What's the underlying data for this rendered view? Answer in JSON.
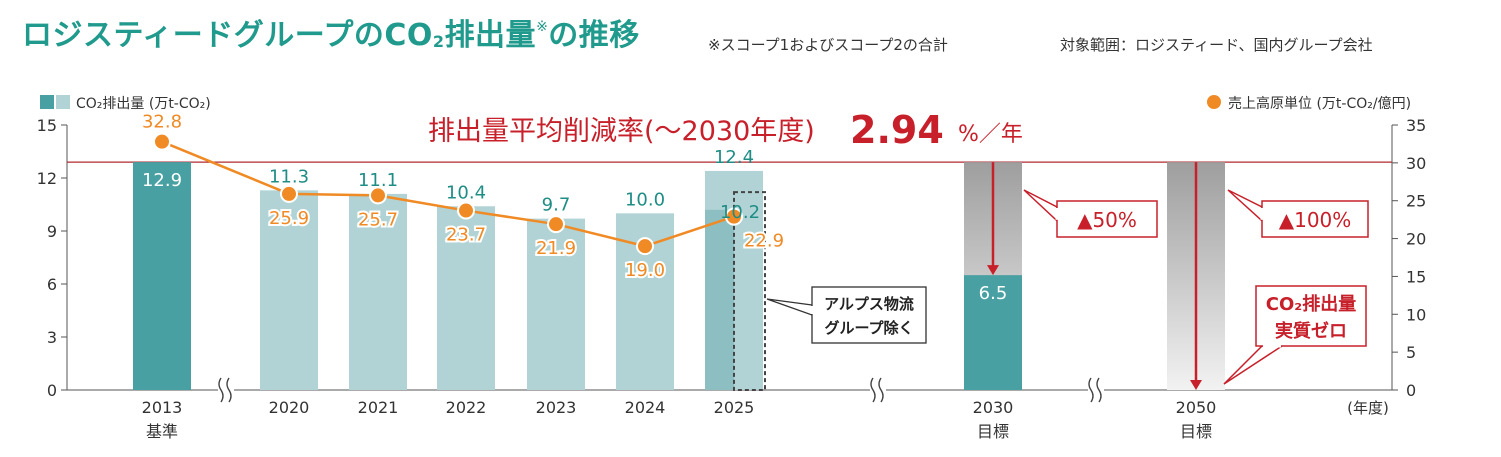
{
  "header": {
    "title_main": "ロジスティードグループのCO",
    "title_sub": "2",
    "title_after": "排出量",
    "title_mark": "※",
    "title_end": "の推移",
    "note_scope": "※スコープ1およびスコープ2の合計",
    "note_range": "対象範囲：ロジスティード、国内グループ会社"
  },
  "chart_data": {
    "type": "bar+line",
    "categories": [
      "2013",
      "2020",
      "2021",
      "2022",
      "2023",
      "2024",
      "2025",
      "2030",
      "2050"
    ],
    "category_sublabels": [
      "基準",
      "",
      "",
      "",
      "",
      "",
      "",
      "目標",
      "目標"
    ],
    "x_unit_label": "(年度)",
    "bar_series": {
      "name": "CO₂排出量 (万t-CO₂)",
      "values": [
        12.9,
        11.3,
        11.1,
        10.4,
        9.7,
        10.0,
        12.4,
        6.5,
        0
      ],
      "labels": [
        "12.9",
        "11.3",
        "11.1",
        "10.4",
        "9.7",
        "10.0",
        "12.4",
        "6.5",
        ""
      ],
      "colors": {
        "dark": "#48a0a2",
        "light": "#b1d3d5",
        "alps_overlay": "#8dbfc2"
      }
    },
    "alps_excluded": {
      "category": "2025",
      "value": 10.2,
      "label": "10.2",
      "callout": [
        "アルプス物流",
        "グループ除く"
      ]
    },
    "line_series": {
      "name": "売上高原単位 (万t-CO₂/億円)",
      "categories": [
        "2013",
        "2020",
        "2021",
        "2022",
        "2023",
        "2024",
        "2025"
      ],
      "values": [
        32.8,
        25.9,
        25.7,
        23.7,
        21.9,
        19.0,
        22.9
      ],
      "labels": [
        "32.8",
        "25.9",
        "25.7",
        "23.7",
        "21.9",
        "19.0",
        "22.9"
      ],
      "color": "#f08a24"
    },
    "y_left": {
      "range": [
        0,
        15
      ],
      "ticks": [
        "0",
        "3",
        "6",
        "9",
        "12",
        "15"
      ]
    },
    "y_right": {
      "range": [
        0,
        35
      ],
      "ticks": [
        "0",
        "5",
        "10",
        "15",
        "20",
        "25",
        "30",
        "35"
      ]
    },
    "reference_line": {
      "value": 12.9,
      "color": "#b0282e"
    },
    "reduction_headline": {
      "text": "排出量平均削減率(〜2030年度)",
      "value": "2.94",
      "unit": "%／年",
      "color": "#c8202a"
    },
    "target_2030": {
      "callout": "▲50%"
    },
    "target_2050": {
      "callout": "▲100%",
      "goal": [
        "CO₂排出量",
        "実質ゼロ"
      ]
    },
    "axis_breaks": [
      "2013-2020",
      "2025-2030",
      "2030-2050"
    ]
  }
}
